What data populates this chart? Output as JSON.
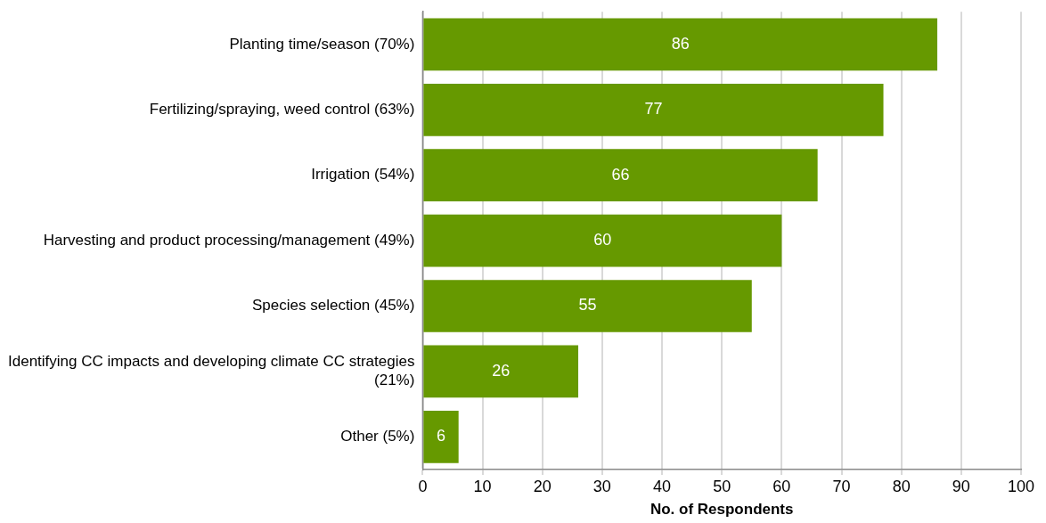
{
  "chart_data": {
    "type": "bar",
    "orientation": "horizontal",
    "xlabel": "No. of Respondents",
    "categories": [
      "Planting time/season (70%)",
      "Fertilizing/spraying, weed control (63%)",
      "Irrigation (54%)",
      "Harvesting and product processing/management (49%)",
      "Species selection (45%)",
      "Identifying CC impacts and developing climate CC strategies (21%)",
      "Other (5%)"
    ],
    "values": [
      86,
      77,
      66,
      60,
      55,
      26,
      6
    ],
    "color": "#669900",
    "xlim": [
      0,
      100
    ],
    "xticks": [
      0,
      10,
      20,
      30,
      40,
      50,
      60,
      70,
      80,
      90,
      100
    ],
    "grid": "x",
    "data_labels": true
  }
}
